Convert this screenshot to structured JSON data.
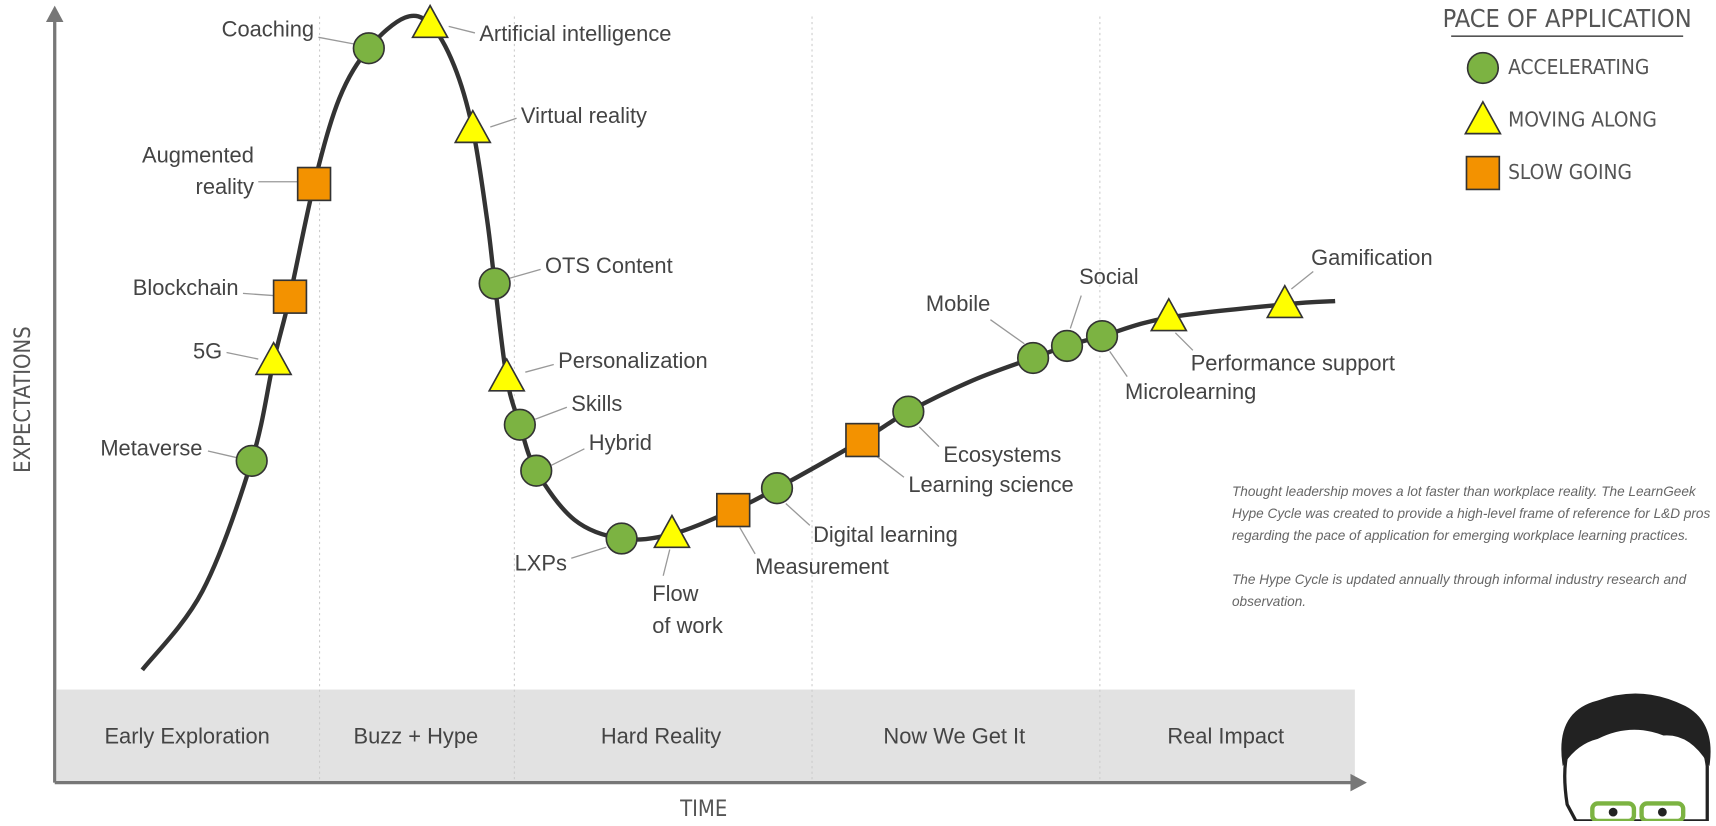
{
  "axes": {
    "y_label": "EXPECTATIONS",
    "x_label": "TIME"
  },
  "phases": [
    "Early Exploration",
    "Buzz + Hype",
    "Hard Reality",
    "Now We Get It",
    "Real Impact"
  ],
  "legend": {
    "title": "PACE OF APPLICATION",
    "items": [
      "ACCELERATING",
      "MOVING ALONG",
      "SLOW GOING"
    ]
  },
  "nodes": [
    {
      "label": [
        "Metaverse"
      ]
    },
    {
      "label": [
        "5G"
      ]
    },
    {
      "label": [
        "Blockchain"
      ]
    },
    {
      "label": [
        "Augmented",
        "reality"
      ]
    },
    {
      "label": [
        "Coaching"
      ]
    },
    {
      "label": [
        "Artificial intelligence"
      ]
    },
    {
      "label": [
        "Virtual reality"
      ]
    },
    {
      "label": [
        "OTS Content"
      ]
    },
    {
      "label": [
        "Personalization"
      ]
    },
    {
      "label": [
        "Skills"
      ]
    },
    {
      "label": [
        "Hybrid"
      ]
    },
    {
      "label": [
        "LXPs"
      ]
    },
    {
      "label": [
        "Flow",
        "of work"
      ]
    },
    {
      "label": [
        "Measurement"
      ]
    },
    {
      "label": [
        "Digital learning"
      ]
    },
    {
      "label": [
        "Ecosystems"
      ]
    },
    {
      "label": [
        "Learning science"
      ]
    },
    {
      "label": [
        "Mobile"
      ]
    },
    {
      "label": [
        "Social"
      ]
    },
    {
      "label": [
        "Microlearning"
      ]
    },
    {
      "label": [
        "Performance support"
      ]
    },
    {
      "label": [
        "Gamification"
      ]
    }
  ],
  "notes": [
    "Thought leadership moves a lot faster than workplace reality. The LearnGeek Hype Cycle was created to provide a high-level frame of reference for L&D pros regarding the pace of application for emerging workplace learning practices.",
    "The Hype Cycle is updated annually through informal industry research and observation."
  ]
}
